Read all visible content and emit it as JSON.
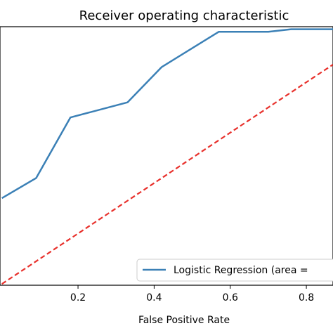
{
  "chart_data": {
    "type": "line",
    "title": "Receiver operating characteristic",
    "xlabel": "False Positive Rate",
    "ylabel": "",
    "xlim": [
      -0.005,
      0.87
    ],
    "ylim": [
      -0.005,
      1.02
    ],
    "xticks": [
      0.2,
      0.4,
      0.6,
      0.8
    ],
    "xtick_labels": [
      "0.2",
      "0.4",
      "0.6",
      "0.8"
    ],
    "grid": false,
    "legend_position": "lower-right",
    "legend_text": "Logistic Regression (area =",
    "series": [
      {
        "name": "Logistic Regression (area =",
        "color": "#3b80b6",
        "style": "solid",
        "x": [
          0.0,
          0.09,
          0.18,
          0.33,
          0.42,
          0.57,
          0.7,
          0.76,
          0.87
        ],
        "y": [
          0.34,
          0.42,
          0.66,
          0.72,
          0.86,
          1.0,
          1.0,
          1.01,
          1.01
        ]
      },
      {
        "name": "",
        "color": "#e8302b",
        "style": "dashed",
        "x": [
          0.0,
          0.87
        ],
        "y": [
          0.0,
          0.87
        ]
      }
    ]
  }
}
